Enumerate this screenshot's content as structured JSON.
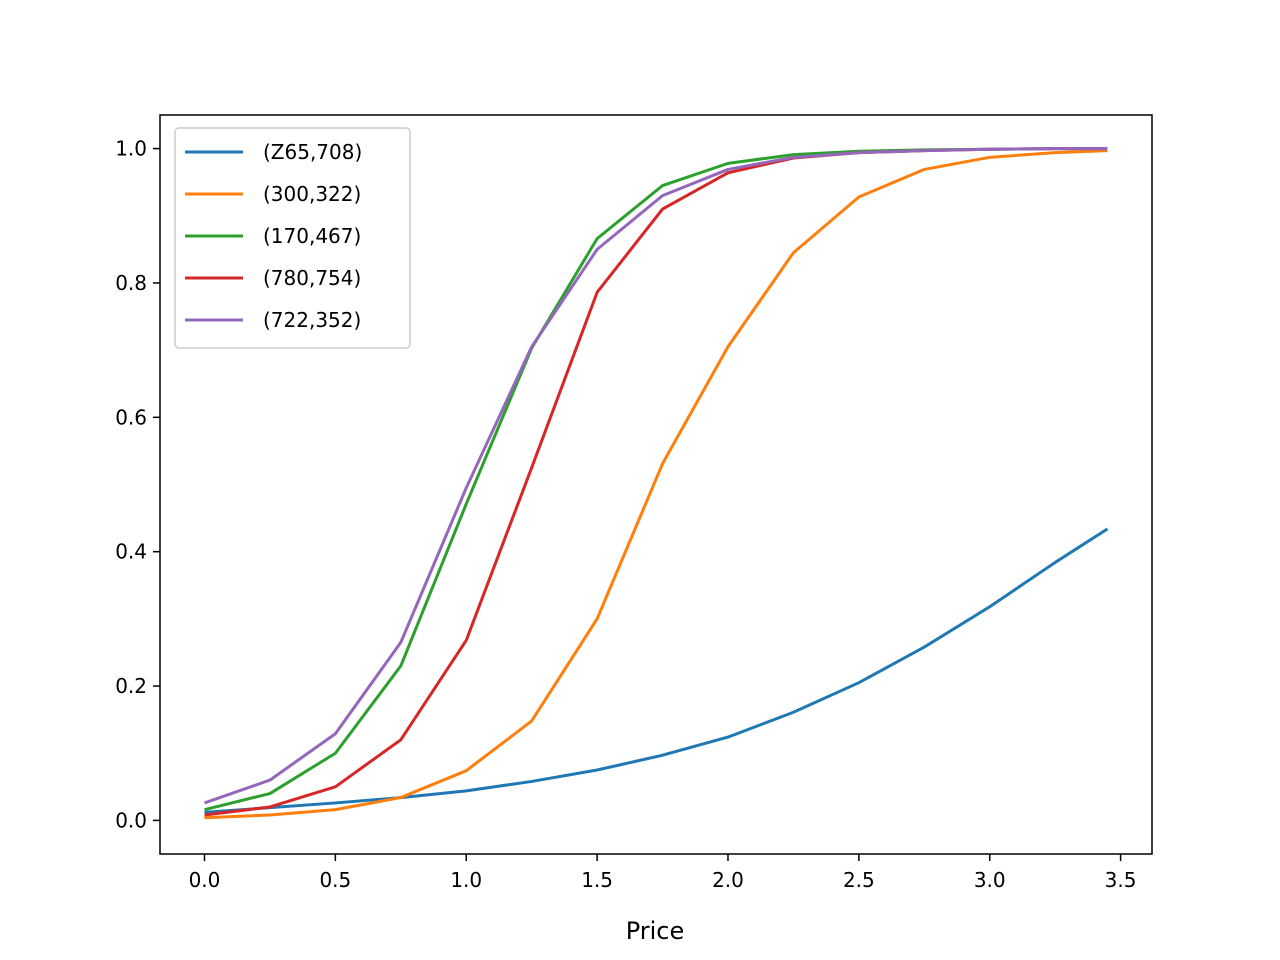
{
  "chart_data": {
    "type": "line",
    "title": "",
    "xlabel": "Price",
    "ylabel": "",
    "xlim": [
      -0.17,
      3.62
    ],
    "ylim": [
      -0.05,
      1.05
    ],
    "xticks": [
      0.0,
      0.5,
      1.0,
      1.5,
      2.0,
      2.5,
      3.0,
      3.5
    ],
    "xtick_labels": [
      "0.0",
      "0.5",
      "1.0",
      "1.5",
      "2.0",
      "2.5",
      "3.0",
      "3.5"
    ],
    "yticks": [
      0.0,
      0.2,
      0.4,
      0.6,
      0.8,
      1.0
    ],
    "ytick_labels": [
      "0.0",
      "0.2",
      "0.4",
      "0.6",
      "0.8",
      "1.0"
    ],
    "grid": false,
    "legend_position": "upper-left",
    "x": [
      0.0,
      0.25,
      0.5,
      0.75,
      1.0,
      1.25,
      1.5,
      1.75,
      2.0,
      2.25,
      2.5,
      2.75,
      3.0,
      3.25,
      3.45
    ],
    "series": [
      {
        "name": "(Z65,708)",
        "color": "#1f77b4",
        "values": [
          0.012,
          0.019,
          0.026,
          0.034,
          0.044,
          0.058,
          0.075,
          0.097,
          0.124,
          0.161,
          0.205,
          0.258,
          0.318,
          0.384,
          0.434
        ]
      },
      {
        "name": "(300,322)",
        "color": "#ff7f0e",
        "values": [
          0.004,
          0.008,
          0.016,
          0.034,
          0.074,
          0.148,
          0.3,
          0.531,
          0.705,
          0.845,
          0.928,
          0.969,
          0.987,
          0.994,
          0.997
        ]
      },
      {
        "name": "(170,467)",
        "color": "#2ca02c",
        "values": [
          0.016,
          0.04,
          0.1,
          0.23,
          0.471,
          0.703,
          0.866,
          0.945,
          0.978,
          0.991,
          0.996,
          0.998,
          0.999,
          1.0,
          1.0
        ]
      },
      {
        "name": "(780,754)",
        "color": "#d62728",
        "values": [
          0.008,
          0.02,
          0.05,
          0.12,
          0.268,
          0.525,
          0.786,
          0.91,
          0.964,
          0.986,
          0.994,
          0.997,
          0.999,
          1.0,
          1.0
        ]
      },
      {
        "name": "(722,352)",
        "color": "#9467bd",
        "values": [
          0.026,
          0.06,
          0.129,
          0.265,
          0.495,
          0.705,
          0.85,
          0.93,
          0.969,
          0.987,
          0.994,
          0.997,
          0.999,
          1.0,
          1.0
        ]
      }
    ]
  }
}
